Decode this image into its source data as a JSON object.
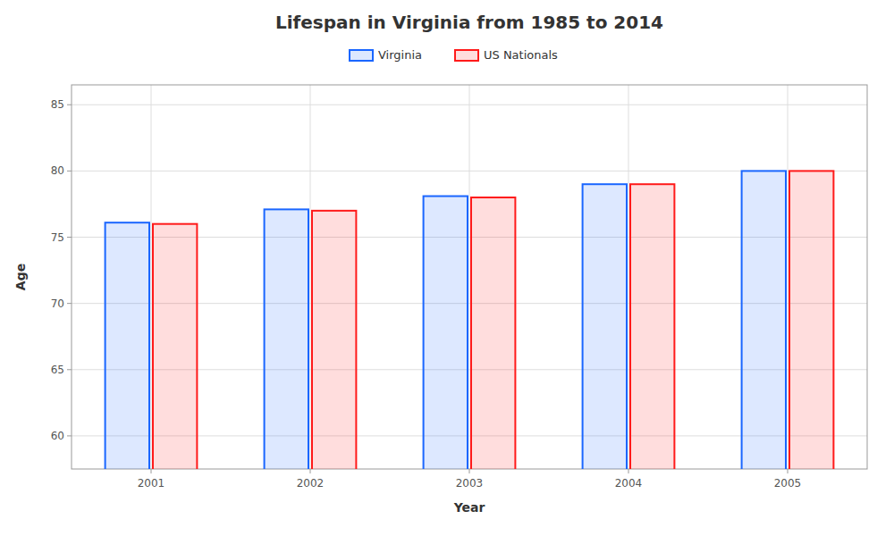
{
  "chart_data": {
    "type": "bar",
    "title": "Lifespan in Virginia from 1985 to 2014",
    "x_label": "Year",
    "y_label": "Age",
    "categories": [
      "2001",
      "2002",
      "2003",
      "2004",
      "2005"
    ],
    "series": [
      {
        "name": "Virginia",
        "color": "#1a66ff",
        "values": [
          76.1,
          77.1,
          78.1,
          79.0,
          80.0
        ]
      },
      {
        "name": "US Nationals",
        "color": "#ff1a1a",
        "values": [
          76.0,
          77.0,
          78.0,
          79.0,
          80.0
        ]
      }
    ],
    "ylim": [
      57.5,
      86.5
    ],
    "yticks": [
      60,
      65,
      70,
      75,
      80,
      85
    ],
    "grid": true,
    "legend": "top"
  }
}
